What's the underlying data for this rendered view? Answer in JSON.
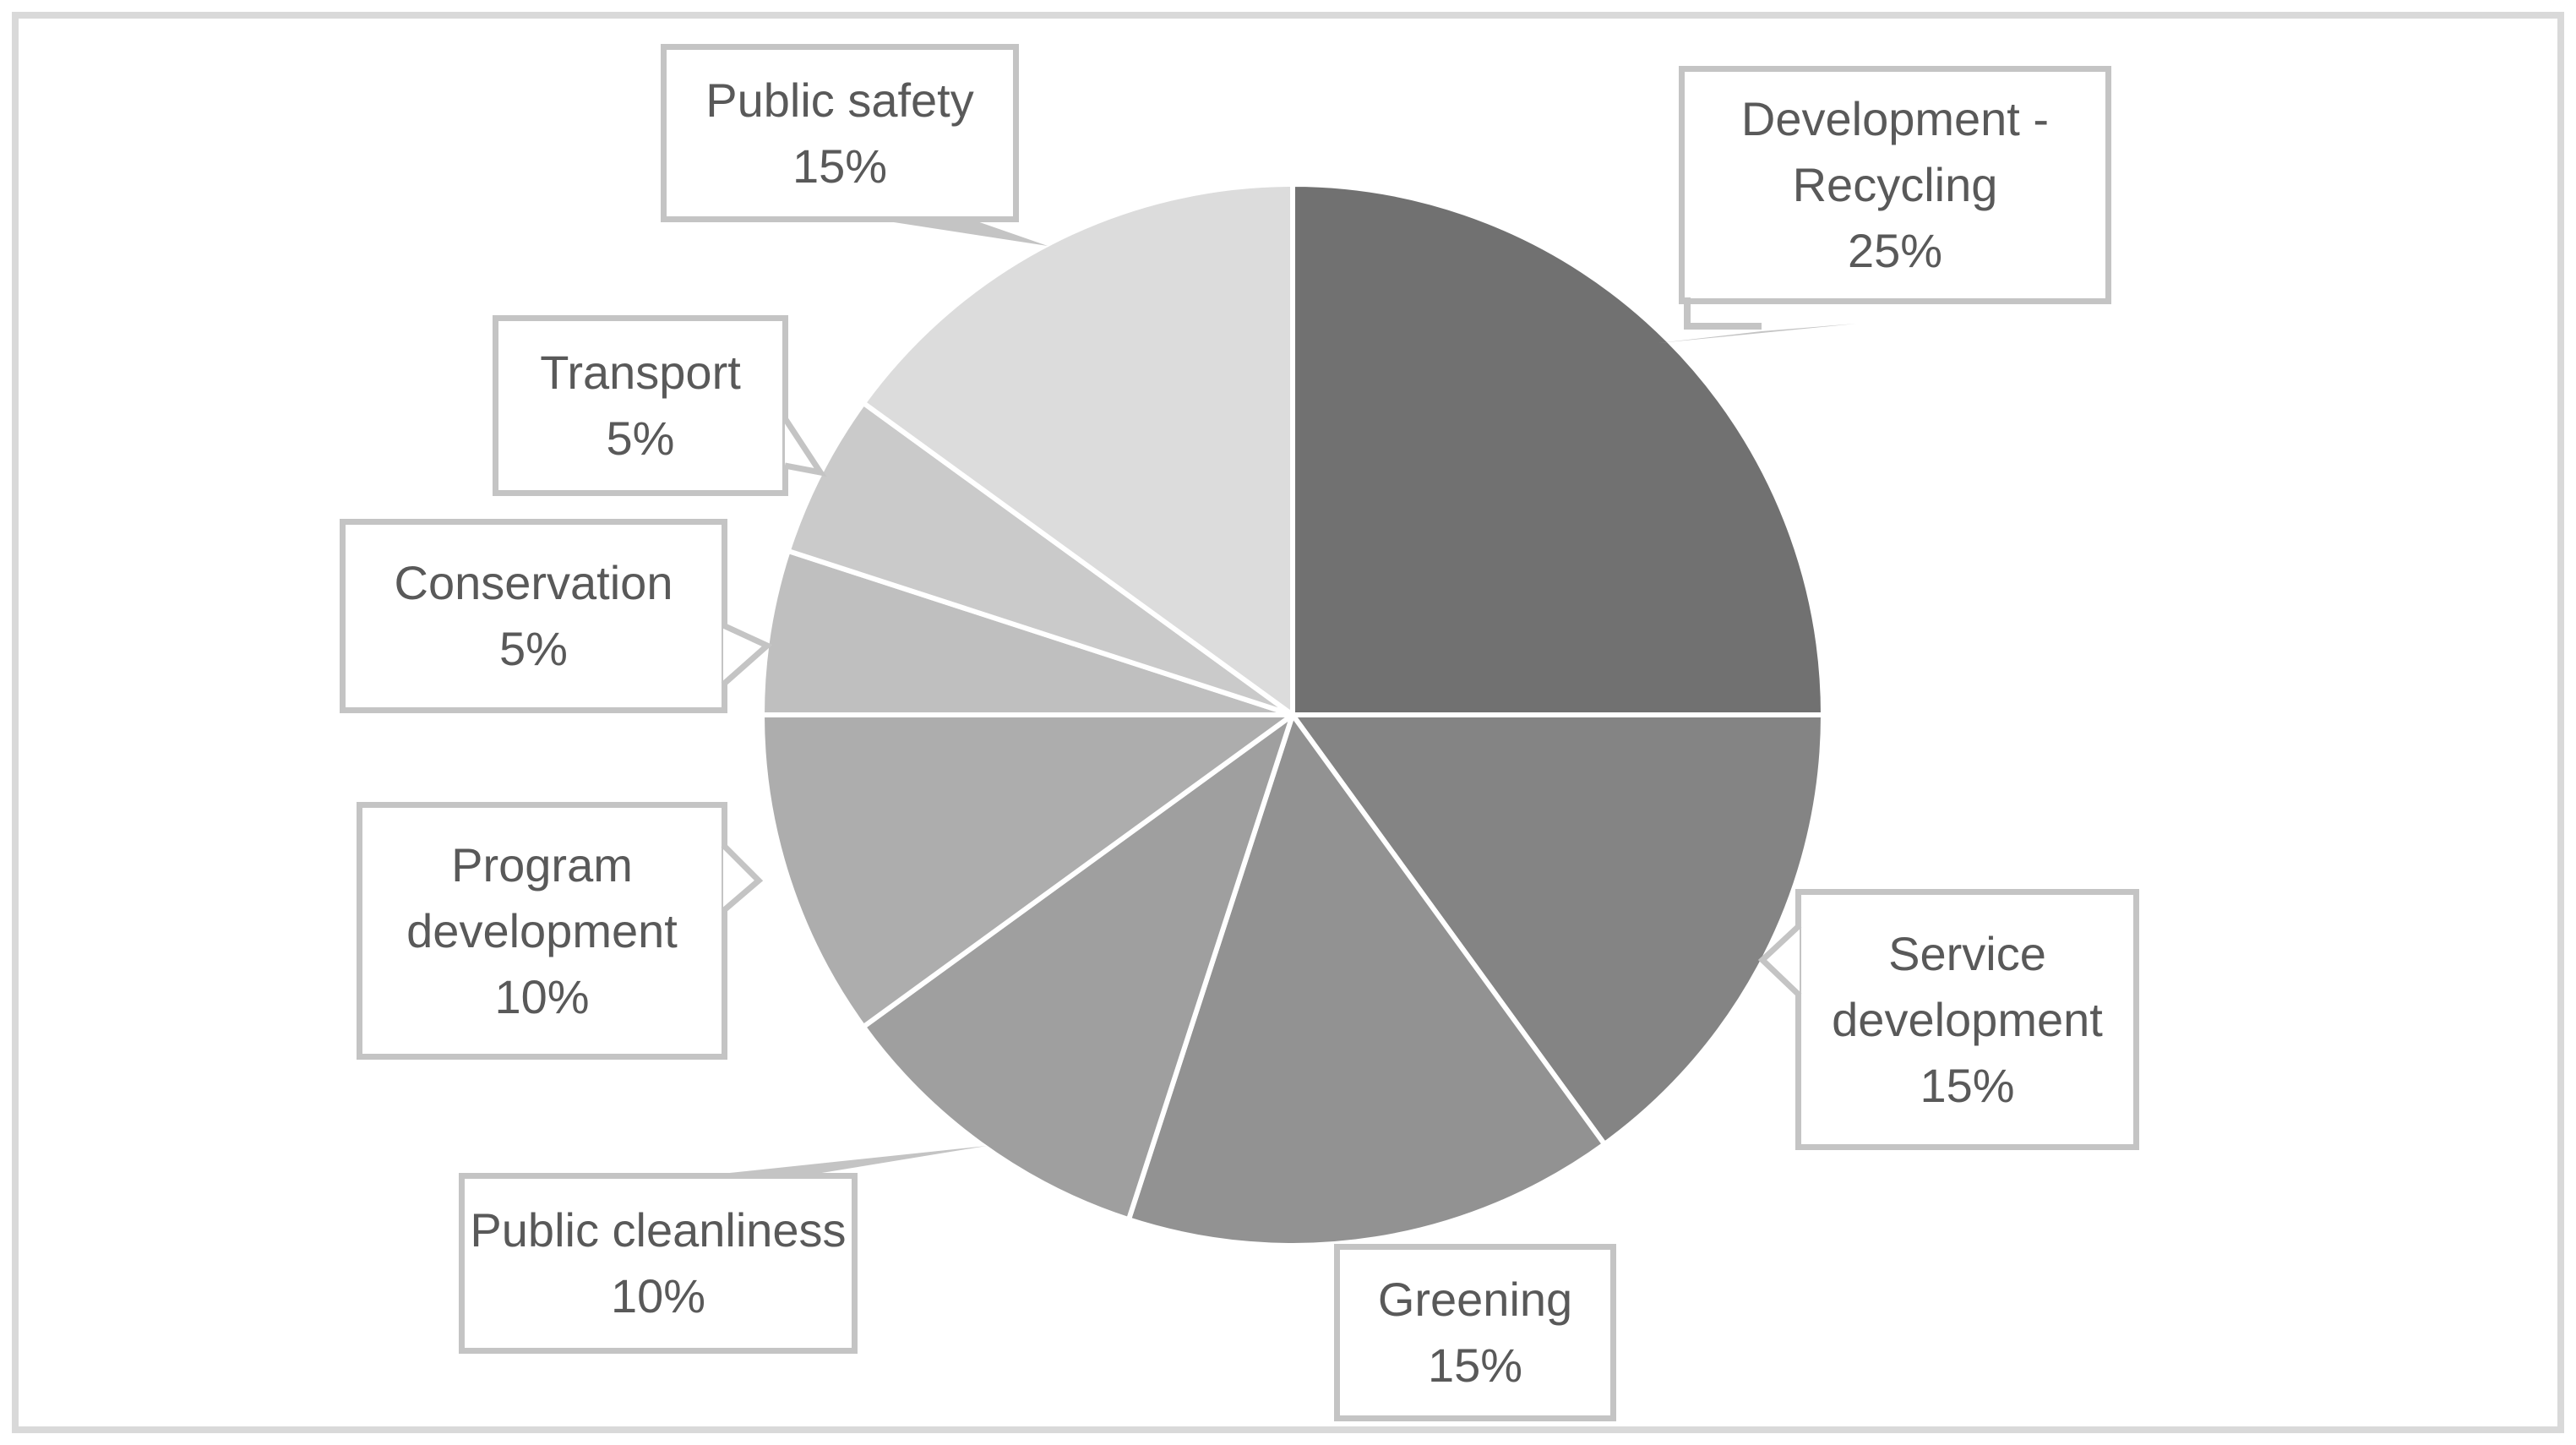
{
  "chart_data": {
    "type": "pie",
    "title": "",
    "direction": "clockwise",
    "start_angle_deg": 0,
    "unit": "percent",
    "segments": [
      {
        "label": "Development - Recycling",
        "value": 25,
        "pct_label": "25%",
        "color": "#717171",
        "callout_lines": [
          "Development -",
          "Recycling",
          "25%"
        ]
      },
      {
        "label": "Service development",
        "value": 15,
        "pct_label": "15%",
        "color": "#848484",
        "callout_lines": [
          "Service",
          "development",
          "15%"
        ]
      },
      {
        "label": "Greening",
        "value": 15,
        "pct_label": "15%",
        "color": "#929292",
        "callout_lines": [
          "Greening",
          "15%"
        ]
      },
      {
        "label": "Public cleanliness",
        "value": 10,
        "pct_label": "10%",
        "color": "#9f9f9f",
        "callout_lines": [
          "Public cleanliness",
          "10%"
        ]
      },
      {
        "label": "Program development",
        "value": 10,
        "pct_label": "10%",
        "color": "#adadad",
        "callout_lines": [
          "Program",
          "development",
          "10%"
        ]
      },
      {
        "label": "Conservation",
        "value": 5,
        "pct_label": "5%",
        "color": "#bfbfbf",
        "callout_lines": [
          "Conservation",
          "5%"
        ]
      },
      {
        "label": "Transport",
        "value": 5,
        "pct_label": "5%",
        "color": "#cacaca",
        "callout_lines": [
          "Transport",
          "5%"
        ]
      },
      {
        "label": "Public safety",
        "value": 15,
        "pct_label": "15%",
        "color": "#dcdcdc",
        "callout_lines": [
          "Public safety",
          "15%"
        ]
      }
    ],
    "layout_hints": {
      "legend": "none",
      "labels": "callout boxes with leader lines",
      "grid": "off"
    },
    "colors": {
      "slice_separator": "#ffffff",
      "callout_border": "#c4c4c4",
      "leader_line": "#c4c4c4",
      "text": "#595959",
      "frame_border": "#d9d9d9",
      "background": "#ffffff"
    }
  }
}
